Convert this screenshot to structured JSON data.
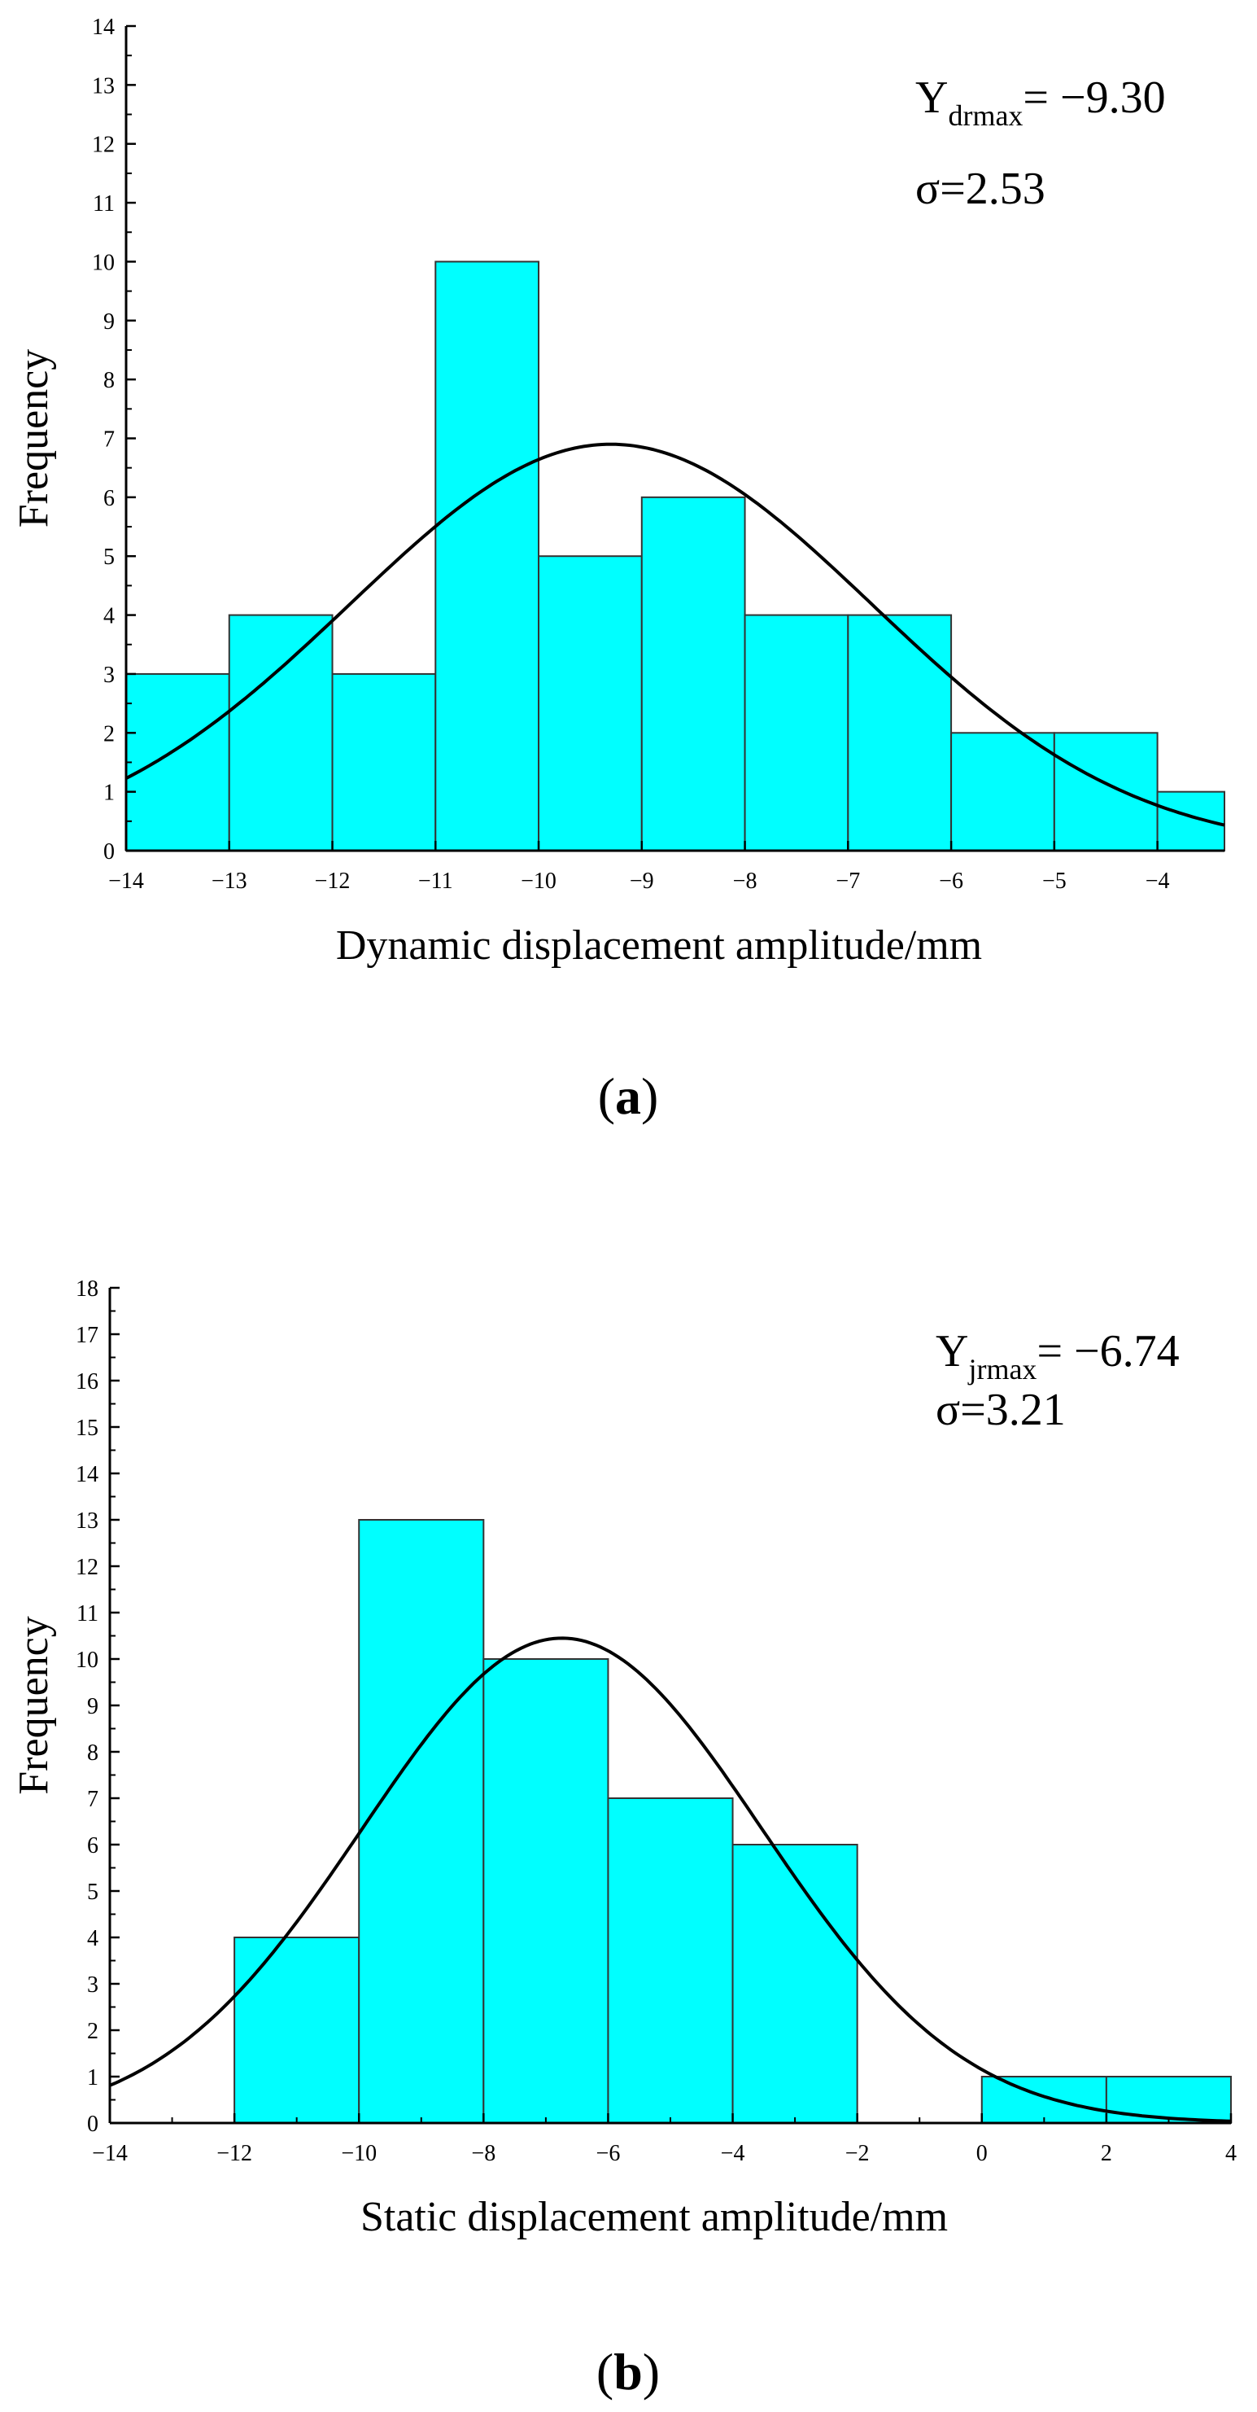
{
  "chart_data": [
    {
      "type": "bar",
      "panel_label": "a",
      "xlabel": "Dynamic displacement amplitude/mm",
      "ylabel": "Frequency",
      "xlim": [
        -14,
        -3.35
      ],
      "ylim": [
        0,
        14
      ],
      "xticks": [
        -14,
        -13,
        -12,
        -11,
        -10,
        -9,
        -8,
        -7,
        -6,
        -5,
        -4
      ],
      "yticks": [
        0,
        1,
        2,
        3,
        4,
        5,
        6,
        7,
        8,
        9,
        10,
        11,
        12,
        13,
        14
      ],
      "bin_edges": [
        -14,
        -13,
        -12,
        -11,
        -10,
        -9,
        -8,
        -7,
        -6,
        -5,
        -4,
        -3.35
      ],
      "values": [
        3,
        4,
        3,
        10,
        5,
        6,
        4,
        4,
        2,
        2,
        1
      ],
      "fit_curve": {
        "type": "normal",
        "mean": -9.3,
        "sigma": 2.53,
        "peak": 6.9
      },
      "stat_symbol": "Y",
      "stat_sub": "drmax",
      "stat_value": "= −9.30",
      "sigma_text": "σ=2.53",
      "bar_color": "#00ffff",
      "curve_color": "#000000"
    },
    {
      "type": "bar",
      "panel_label": "b",
      "xlabel": "Static displacement amplitude/mm",
      "ylabel": "Frequency",
      "xlim": [
        -14,
        4
      ],
      "ylim": [
        0,
        18
      ],
      "xticks": [
        -14,
        -12,
        -10,
        -8,
        -6,
        -4,
        -2,
        0,
        2,
        4
      ],
      "yticks": [
        0,
        1,
        2,
        3,
        4,
        5,
        6,
        7,
        8,
        9,
        10,
        11,
        12,
        13,
        14,
        15,
        16,
        17,
        18
      ],
      "bin_edges": [
        -12,
        -10,
        -8,
        -6,
        -4,
        -2,
        0,
        2,
        4
      ],
      "values": [
        4,
        13,
        10,
        7,
        6,
        0,
        1,
        1
      ],
      "fit_curve": {
        "type": "normal",
        "mean": -6.74,
        "sigma": 3.21,
        "peak": 10.45
      },
      "stat_symbol": "Y",
      "stat_sub": "jrmax",
      "stat_value": "= −6.74",
      "sigma_text": "σ=3.21",
      "bar_color": "#00ffff",
      "curve_color": "#000000"
    }
  ]
}
